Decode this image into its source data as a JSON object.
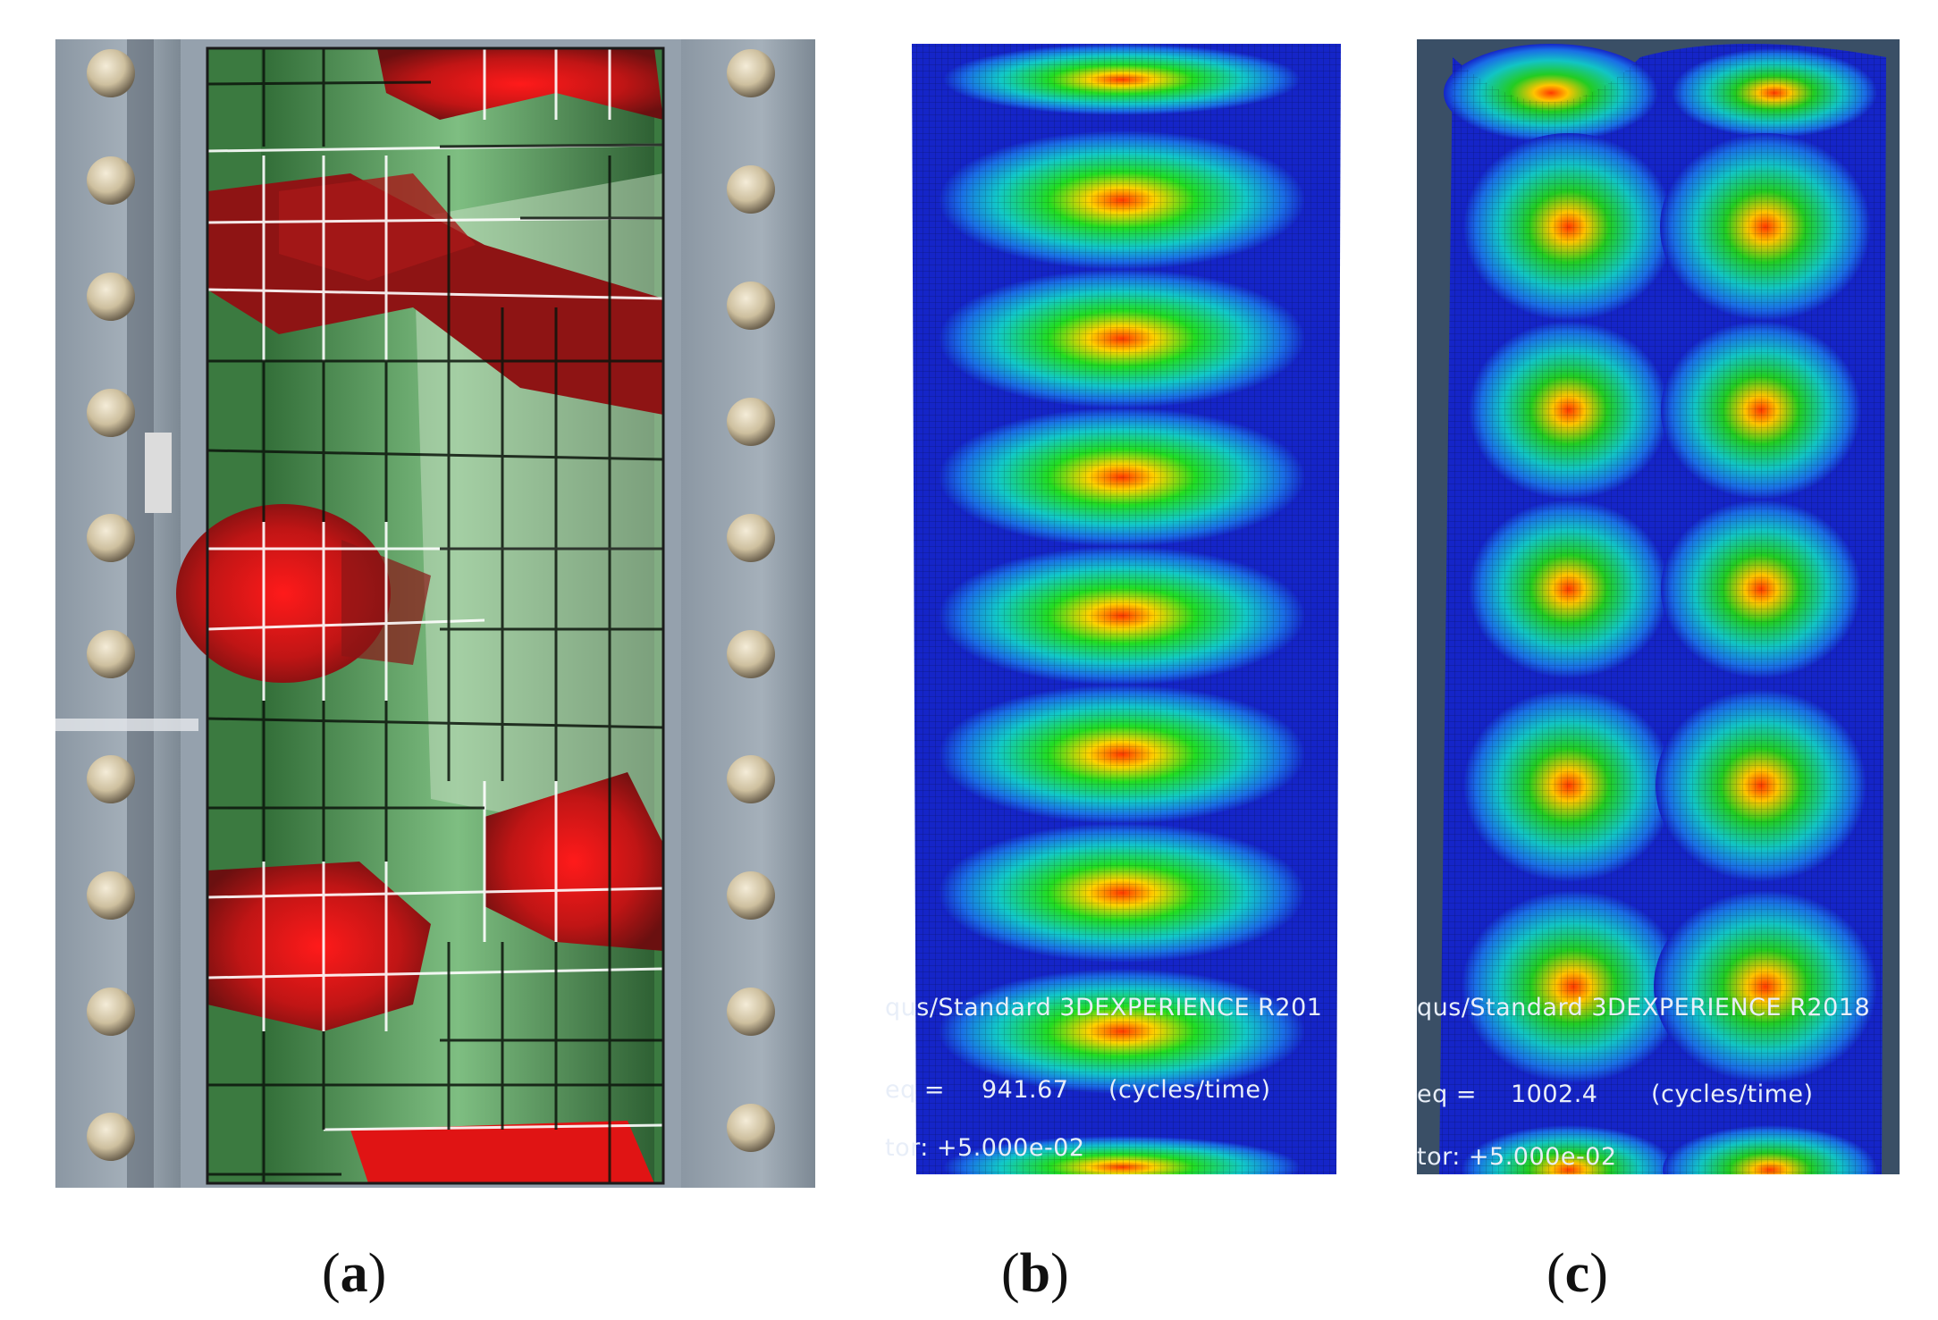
{
  "panels": {
    "a": {
      "label": "a"
    },
    "b": {
      "label": "b",
      "overlay": {
        "line1": "qus/Standard 3DEXPERIENCE R201",
        "freq_prefix": "eq =",
        "freq_value": "941.67",
        "freq_unit": "(cycles/time)",
        "factor": "tor: +5.000e-02"
      }
    },
    "c": {
      "label": "c",
      "overlay": {
        "line1": "qus/Standard 3DEXPERIENCE R2018",
        "freq_prefix": "eq =",
        "freq_value": "1002.4",
        "freq_unit": "(cycles/time)",
        "factor": "tor: +5.000e-02"
      }
    }
  },
  "colors": {
    "fe_background": "#1525c8",
    "fe_hot": "#ff2a00",
    "dic_red": "#c81414",
    "dic_green": "#3c8c46",
    "steel": "#8c99a6"
  }
}
